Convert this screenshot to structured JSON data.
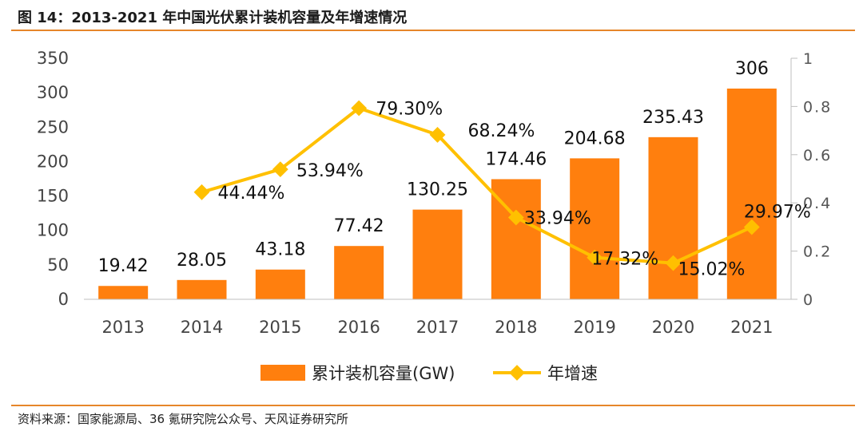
{
  "title": "图 14：2013-2021 年中国光伏累计装机容量及年增速情况",
  "source": "资料来源：国家能源局、36 氪研究院公众号、天风证券研究所",
  "colors": {
    "bar": "#ff7f0e",
    "line": "#ffc000",
    "rule": "#e6862a"
  },
  "chart_data": {
    "type": "bar",
    "categories": [
      "2013",
      "2014",
      "2015",
      "2016",
      "2017",
      "2018",
      "2019",
      "2020",
      "2021"
    ],
    "series": [
      {
        "name": "累计装机容量(GW)",
        "type": "bar",
        "axis": "left",
        "values": [
          19.42,
          28.05,
          43.18,
          77.42,
          130.25,
          174.46,
          204.68,
          235.43,
          306
        ],
        "labels": [
          "19.42",
          "28.05",
          "43.18",
          "77.42",
          "130.25",
          "174.46",
          "204.68",
          "235.43",
          "306"
        ]
      },
      {
        "name": "年增速",
        "type": "line",
        "axis": "right",
        "values": [
          null,
          0.4444,
          0.5394,
          0.793,
          0.6824,
          0.3394,
          0.1732,
          0.1502,
          0.2997
        ],
        "labels": [
          "",
          "44.44%",
          "53.94%",
          "79.30%",
          "68.24%",
          "33.94%",
          "17.32%",
          "15.02%",
          "29.97%"
        ]
      }
    ],
    "yleft": {
      "range": [
        0,
        350
      ],
      "ticks": [
        "0",
        "50",
        "100",
        "150",
        "200",
        "250",
        "300",
        "350"
      ]
    },
    "yright": {
      "range": [
        0,
        1
      ],
      "ticks": [
        "0",
        "0.2",
        "0.4",
        "0.6",
        "0.8",
        "1"
      ]
    },
    "legend_position": "bottom"
  }
}
